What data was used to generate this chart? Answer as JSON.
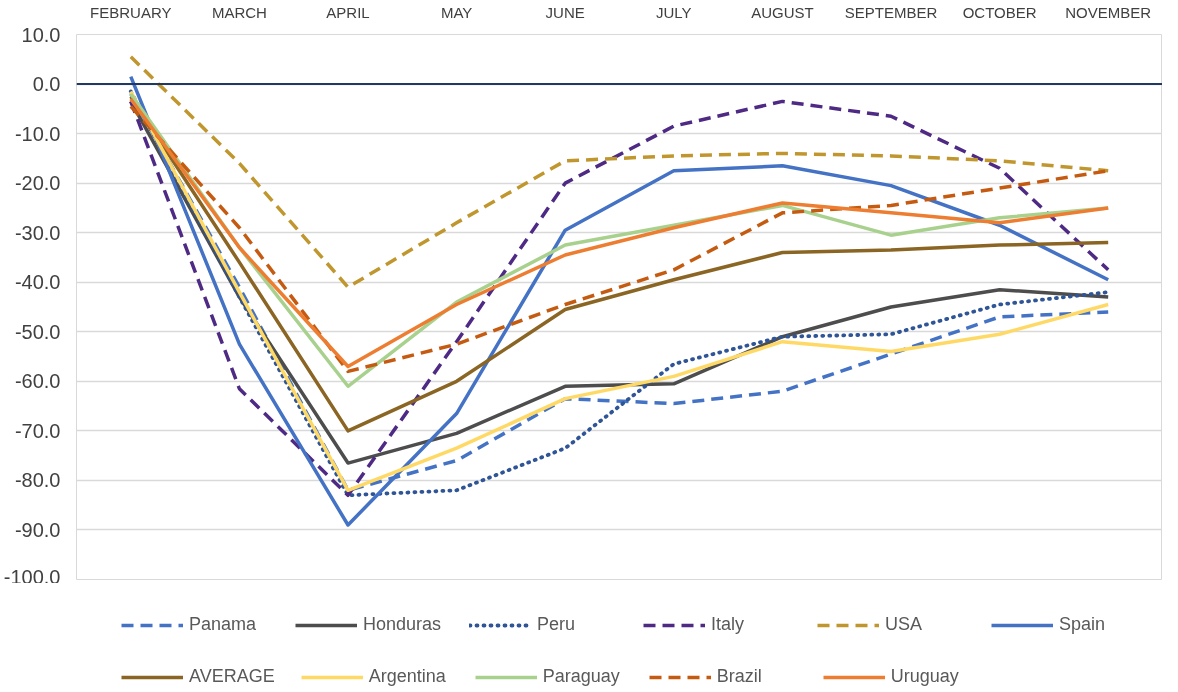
{
  "chart_data": {
    "type": "line",
    "categories": [
      "FEBRUARY",
      "MARCH",
      "APRIL",
      "MAY",
      "JUNE",
      "JULY",
      "AUGUST",
      "SEPTEMBER",
      "OCTOBER",
      "NOVEMBER"
    ],
    "ylim": [
      -100,
      10
    ],
    "yticks": [
      {
        "value": 10,
        "label": "10.0"
      },
      {
        "value": 0,
        "label": "0.0"
      },
      {
        "value": -10,
        "label": "-10.0"
      },
      {
        "value": -20,
        "label": "-20.0"
      },
      {
        "value": -30,
        "label": "-30.0"
      },
      {
        "value": -40,
        "label": "-40.0"
      },
      {
        "value": -50,
        "label": "-50.0"
      },
      {
        "value": -60,
        "label": "-60.0"
      },
      {
        "value": -70,
        "label": "-70.0"
      },
      {
        "value": -80,
        "label": "-80.0"
      },
      {
        "value": -90,
        "label": "-90.0"
      },
      {
        "value": -100,
        "label": "-100.0"
      }
    ],
    "grid": "y",
    "legend": "bottom",
    "ref_lines": [
      {
        "axis": "y",
        "value": 0,
        "color": "#1f3864"
      }
    ],
    "series": [
      {
        "name": "Panama",
        "color": "#4472c4",
        "line_style": "dashed",
        "values": [
          -2,
          -41,
          -82,
          -76,
          -63.5,
          -64.5,
          -62,
          -54.5,
          -47,
          -46
        ]
      },
      {
        "name": "Honduras",
        "color": "#4d4d4d",
        "values": [
          -3.5,
          -43,
          -76.5,
          -70.5,
          -61,
          -60.5,
          -51,
          -45,
          -41.5,
          -43
        ]
      },
      {
        "name": "Peru",
        "color": "#2f5597",
        "line_style": "dotted",
        "values": [
          -1.5,
          -43,
          -83,
          -82,
          -73.5,
          -56.5,
          -51,
          -50.5,
          -44.5,
          -42
        ]
      },
      {
        "name": "Italy",
        "color": "#4e2a84",
        "line_style": "dashed",
        "values": [
          -3.5,
          -61.5,
          -83,
          -52,
          -20,
          -8.5,
          -3.5,
          -6.5,
          -17,
          -37.5
        ]
      },
      {
        "name": "USA",
        "color": "#c0962e",
        "line_style": "dashed",
        "values": [
          5.5,
          -16,
          -41,
          -28,
          -15.5,
          -14.5,
          -14,
          -14.5,
          -15.5,
          -17.5
        ]
      },
      {
        "name": "Spain",
        "color": "#4472c4",
        "values": [
          1.5,
          -52.5,
          -89,
          -66.5,
          -29.5,
          -17.5,
          -16.5,
          -20.5,
          -28.5,
          -39.5
        ]
      },
      {
        "name": "AVERAGE",
        "color": "#8b6523",
        "values": [
          -2.5,
          -36,
          -70,
          -60,
          -45.5,
          -39.5,
          -34,
          -33.5,
          -32.5,
          -32
        ]
      },
      {
        "name": "Argentina",
        "color": "#ffd966",
        "values": [
          -1.5,
          -42,
          -82,
          -73.5,
          -63.5,
          -59,
          -52,
          -54,
          -50.5,
          -44.5
        ]
      },
      {
        "name": "Paraguay",
        "color": "#a9d18e",
        "values": [
          -2,
          -33,
          -61,
          -44,
          -32.5,
          -28.5,
          -24.5,
          -30.5,
          -27,
          -25
        ]
      },
      {
        "name": "Brazil",
        "color": "#c55a11",
        "line_style": "dashed",
        "values": [
          -4.5,
          -29,
          -58,
          -52.5,
          -44.5,
          -37.5,
          -26,
          -24.5,
          -21,
          -17.5
        ]
      },
      {
        "name": "Uruguay",
        "color": "#ed7d31",
        "values": [
          -3,
          -33,
          -57,
          -44.5,
          -34.5,
          -29,
          -24,
          -26,
          -28,
          -25
        ]
      }
    ]
  }
}
